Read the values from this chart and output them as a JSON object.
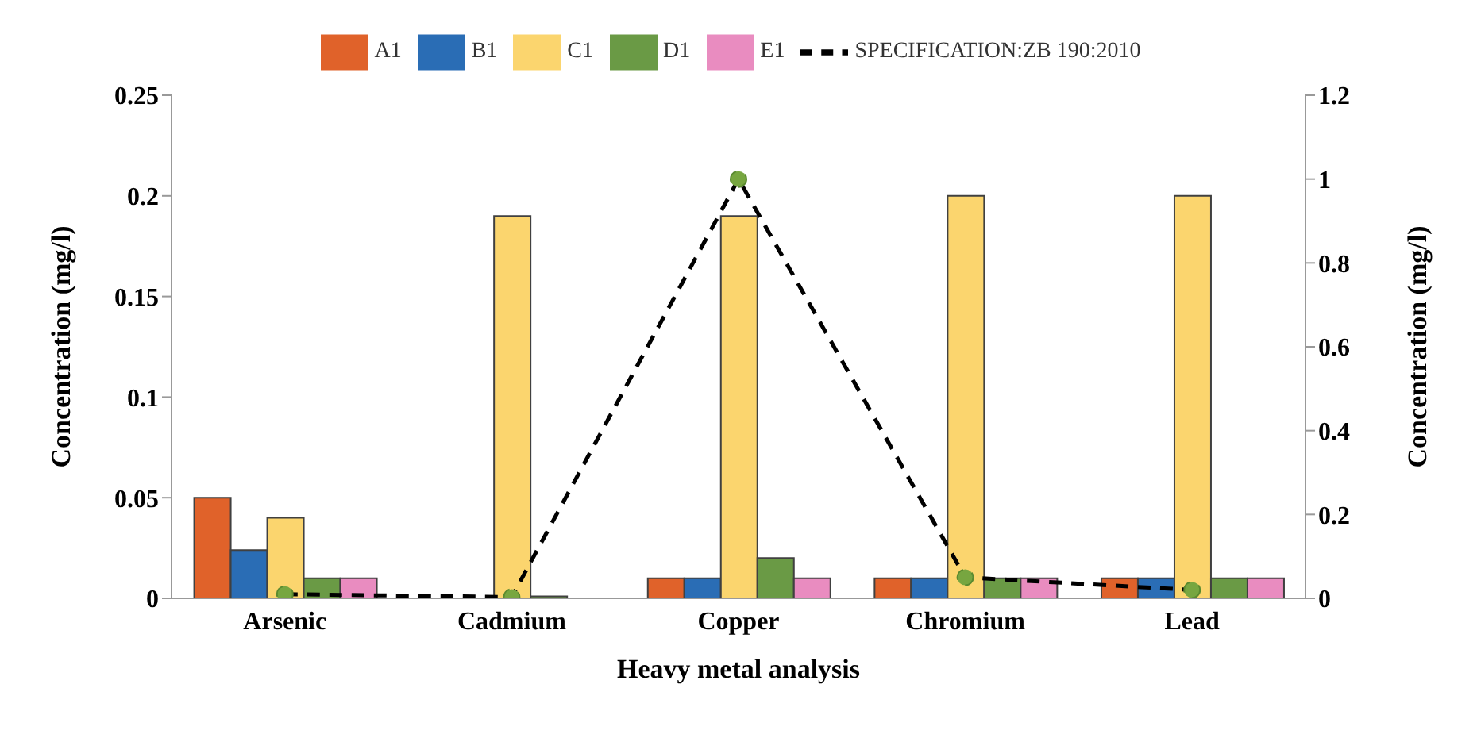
{
  "chart_data": {
    "type": "bar",
    "xlabel": "Heavy metal analysis",
    "ylabel": "Concentration (mg/l)",
    "y2label": "Concentration (mg/l)",
    "categories": [
      "Arsenic",
      "Cadmium",
      "Copper",
      "Chromium",
      "Lead"
    ],
    "series": [
      {
        "name": "A1",
        "color": "#e0622a",
        "values": [
          0.05,
          null,
          0.01,
          0.01,
          0.01
        ]
      },
      {
        "name": "B1",
        "color": "#2a6db5",
        "values": [
          0.024,
          null,
          0.01,
          0.01,
          0.01
        ]
      },
      {
        "name": "C1",
        "color": "#fbd56e",
        "values": [
          0.04,
          0.19,
          0.19,
          0.2,
          0.2
        ]
      },
      {
        "name": "D1",
        "color": "#6a9a45",
        "values": [
          0.01,
          0.001,
          0.02,
          0.01,
          0.01
        ]
      },
      {
        "name": "E1",
        "color": "#e98cc0",
        "values": [
          0.01,
          null,
          0.01,
          0.01,
          0.01
        ]
      },
      {
        "name": "SPECIFICATION:ZB 190:2010",
        "type": "line",
        "axis": "y2",
        "color": "#000000",
        "marker": "circle",
        "line_style": "dashed",
        "values": [
          0.01,
          0.003,
          1,
          0.05,
          0.02
        ]
      }
    ],
    "ylim": [
      0,
      0.25
    ],
    "yticks": [
      0,
      0.05,
      0.1,
      0.15,
      0.2,
      0.25
    ],
    "y2lim": [
      0,
      1.2
    ],
    "y2ticks": [
      0,
      0.2,
      0.4,
      0.6,
      0.8,
      1,
      1.2
    ],
    "grid": false,
    "legend": "top"
  }
}
